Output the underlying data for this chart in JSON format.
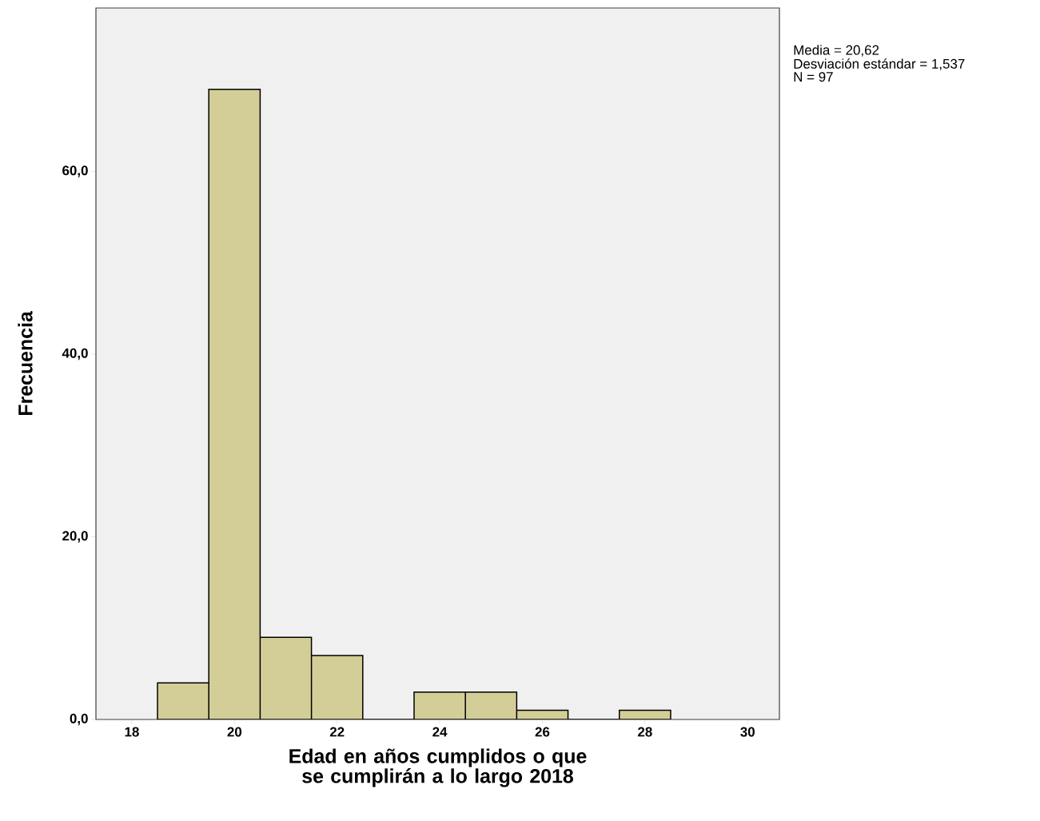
{
  "chart_data": {
    "type": "histogram",
    "xlabel": "Edad en años cumplidos o que se cumplirán a lo largo 2018",
    "ylabel": "Frecuencia",
    "bins": [
      18.5,
      19.5,
      20.5,
      21.5,
      22.5,
      23.5,
      24.5,
      25.5,
      26.5,
      27.5,
      28.5
    ],
    "values": [
      4,
      69,
      9,
      7,
      0,
      3,
      3,
      1,
      0,
      1
    ],
    "color": "#d3ce97",
    "xlim": [
      17.3,
      30.62
    ],
    "ylim": [
      0,
      77.9
    ],
    "xticks": [
      18,
      20,
      22,
      24,
      26,
      28,
      30
    ],
    "yticks": [
      {
        "value": 0,
        "label": "0,0"
      },
      {
        "value": 20,
        "label": "20,0"
      },
      {
        "value": 40,
        "label": "40,0"
      },
      {
        "value": 60,
        "label": "60,0"
      }
    ],
    "annotations": [
      "Media = 20,62",
      "Desviación estándar = 1,537",
      "N = 97"
    ],
    "grid": false
  }
}
